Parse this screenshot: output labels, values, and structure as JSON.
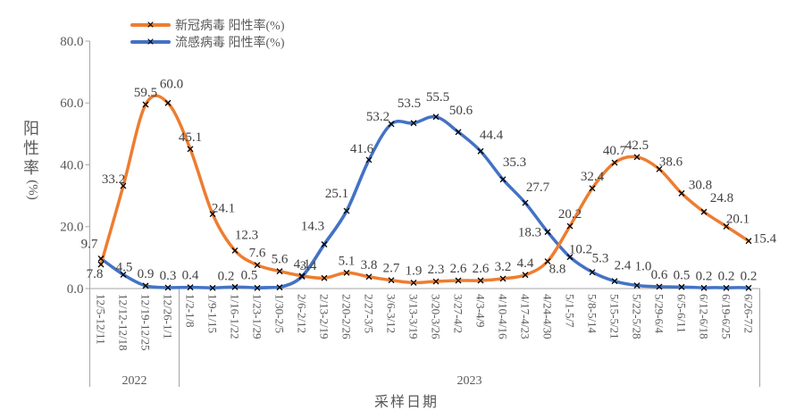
{
  "chart_data": {
    "type": "line",
    "title": "",
    "xlabel": "采样日期",
    "ylabel_stack": "阳性率",
    "ylabel_unit": "(%)",
    "ylim": [
      0,
      80
    ],
    "ytick_labels": [
      "0.0",
      "20.0",
      "40.0",
      "60.0",
      "80.0"
    ],
    "ytick_values": [
      0,
      20,
      40,
      60,
      80
    ],
    "grid": false,
    "smooth_lines": true,
    "legend_position": "top-left",
    "marker": "x",
    "marker_color": "#000000",
    "axis_color": "#A6A6A6",
    "data_label_color": "#404040",
    "tick_label_color": "#595959",
    "categories": [
      "12/5-12/11",
      "12/12-12/18",
      "12/19-12/25",
      "12/26-1/1",
      "1/2-1/8",
      "1/9-1/15",
      "1/16-1/22",
      "1/23-1/29",
      "1/30-2/5",
      "2/6-2/12",
      "2/13-2/19",
      "2/20-2/26",
      "2/27-3/5",
      "3/6-3/12",
      "3/13-3/19",
      "3/20-3/26",
      "3/27-4/2",
      "4/3-4/9",
      "4/10-4/16",
      "4/17-4/23",
      "4/24-4/30",
      "5/1-5/7",
      "5/8-5/14",
      "5/15-5/21",
      "5/22-5/28",
      "5/29-6/4",
      "6/5-6/11",
      "6/12-6/18",
      "6/19-6/25",
      "6/26-7/2"
    ],
    "year_groups": [
      {
        "label": "2022",
        "start_index": 0,
        "end_index": 3
      },
      {
        "label": "2023",
        "start_index": 4,
        "end_index": 29
      }
    ],
    "series": [
      {
        "name": "新冠病毒 阳性率(%)",
        "color": "#ED7D31",
        "values": [
          7.8,
          33.2,
          59.5,
          60.0,
          45.1,
          24.1,
          12.3,
          7.6,
          5.6,
          4.1,
          3.4,
          5.1,
          3.8,
          2.7,
          1.9,
          2.3,
          2.6,
          2.6,
          3.2,
          4.4,
          8.8,
          20.2,
          32.4,
          40.7,
          42.5,
          38.6,
          30.8,
          24.8,
          20.1,
          15.4
        ],
        "labels": [
          "7.8",
          "33.2",
          "59.5",
          "60.0",
          "45.1",
          "24.1",
          "12.3",
          "7.6",
          "5.6",
          "4.1",
          "3.4",
          "5.1",
          "3.8",
          "2.7",
          "1.9",
          "2.3",
          "2.6",
          "2.6",
          "3.2",
          "4.4",
          "8.8",
          "20.2",
          "32.4",
          "40.7",
          "42.5",
          "38.6",
          "30.8",
          "24.8",
          "20.1",
          "15.4"
        ],
        "label_offsets": {
          "0": [
            -7,
            24
          ],
          "1": [
            -11,
            6
          ],
          "3": [
            4,
            -8
          ],
          "5": [
            12,
            7
          ],
          "6": [
            13,
            -4
          ],
          "10": [
            -18,
            0
          ],
          "20": [
            11,
            22
          ],
          "25": [
            13,
            5
          ],
          "26": [
            21,
            4
          ],
          "27": [
            20,
            -2
          ],
          "28": [
            13,
            5
          ],
          "29": [
            18,
            11
          ]
        }
      },
      {
        "name": "流感病毒 阳性率(%)",
        "color": "#4472C4",
        "values": [
          9.7,
          4.5,
          0.9,
          0.3,
          0.4,
          0.2,
          0.5,
          0.2,
          0.4,
          3.9,
          14.3,
          25.1,
          41.6,
          53.2,
          53.5,
          55.5,
          50.6,
          44.4,
          35.3,
          27.7,
          18.3,
          10.2,
          5.3,
          2.4,
          1.0,
          0.6,
          0.5,
          0.2,
          0.2,
          0.2
        ],
        "labels": [
          "9.7",
          "4.5",
          "0.9",
          "0.3",
          "0.4",
          "0.2",
          "0.5",
          null,
          null,
          null,
          "14.3",
          "25.1",
          "41.6",
          "53.2",
          "53.5",
          "55.5",
          "50.6",
          "44.4",
          "35.3",
          "27.7",
          "18.3",
          "10.2",
          "5.3",
          "2.4",
          "1.0",
          "0.6",
          "0.5",
          "0.2",
          "0.2",
          "0.2"
        ],
        "label_offsets": {
          "0": [
            -13,
            -3
          ],
          "1": [
            1,
            5
          ],
          "5": [
            15,
            0
          ],
          "6": [
            16,
            0
          ],
          "10": [
            -13,
            -7
          ],
          "11": [
            -11,
            -6
          ],
          "12": [
            -8,
            1
          ],
          "13": [
            -15,
            5
          ],
          "14": [
            -5,
            -9
          ],
          "15": [
            2,
            -9
          ],
          "16": [
            3,
            -11
          ],
          "17": [
            12,
            -5
          ],
          "18": [
            13,
            -6
          ],
          "19": [
            14,
            -4
          ],
          "20": [
            -20,
            14
          ],
          "21": [
            12,
            5
          ],
          "22": [
            9,
            -2
          ],
          "23": [
            9,
            -4
          ],
          "24": [
            7,
            -8
          ]
        }
      }
    ]
  }
}
